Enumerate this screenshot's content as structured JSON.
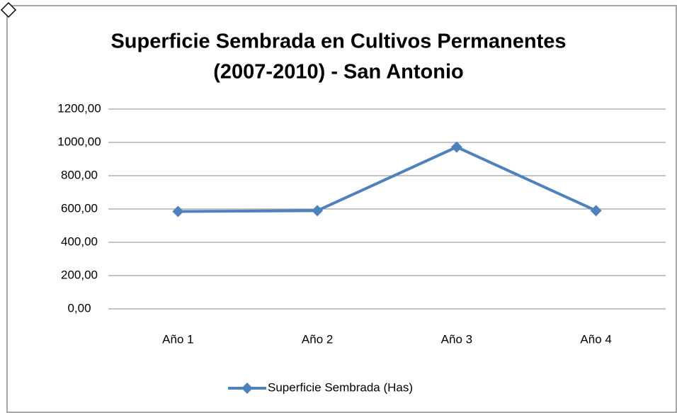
{
  "chart_data": {
    "type": "line",
    "title": [
      "Superficie Sembrada en Cultivos Permanentes",
      "(2007-2010) - San Antonio"
    ],
    "categories": [
      "Año 1",
      "Año 2",
      "Año 3",
      "Año 4"
    ],
    "series": [
      {
        "name": "Superficie Sembrada (Has)",
        "color": "#4f81bd",
        "values": [
          585,
          590,
          972,
          590
        ]
      }
    ],
    "ylim": [
      0,
      1200
    ],
    "yticks": [
      {
        "value": 0,
        "label": "0,00"
      },
      {
        "value": 200,
        "label": "200,00"
      },
      {
        "value": 400,
        "label": "400,00"
      },
      {
        "value": 600,
        "label": "600,00"
      },
      {
        "value": 800,
        "label": "800,00"
      },
      {
        "value": 1000,
        "label": "1000,00"
      },
      {
        "value": 1200,
        "label": "1200,00"
      }
    ],
    "grid": true,
    "legend": "bottom"
  }
}
